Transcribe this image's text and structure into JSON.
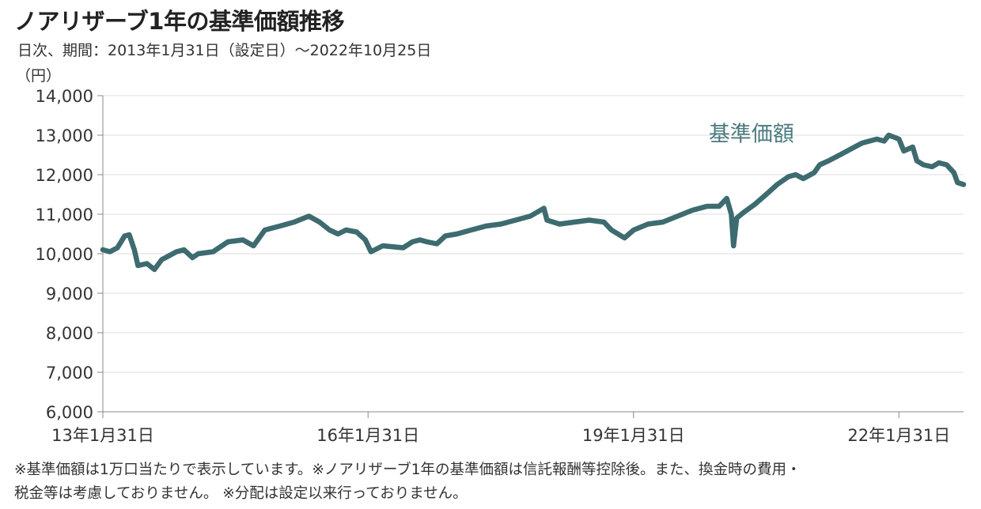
{
  "header": {
    "title": "ノアリザーブ1年の基準価額推移",
    "subtitle": "日次、期間：2013年1月31日（設定日）〜2022年10月25日"
  },
  "notes": [
    "※基準価額は1万口当たりで表示しています。※ノアリザーブ1年の基準価額は信託報酬等控除後。また、換金時の費用・",
    "税金等は考慮しておりません。 ※分配は設定以来行っておりません。"
  ],
  "colors": {
    "line": "#3d6b70",
    "axis": "#888888",
    "grid": "#dcdcdc",
    "text": "#333333",
    "series_label": "#4a7a7f"
  },
  "chart_data": {
    "type": "line",
    "title": "ノアリザーブ1年の基準価額推移",
    "ylabel": "（円）",
    "ylim": [
      6000,
      14000
    ],
    "yticks": [
      6000,
      7000,
      8000,
      9000,
      10000,
      11000,
      12000,
      13000,
      14000
    ],
    "ytick_labels": [
      "6,000",
      "7,000",
      "8,000",
      "9,000",
      "10,000",
      "11,000",
      "12,000",
      "13,000",
      "14,000"
    ],
    "xlim": [
      "2013-01-31",
      "2022-10-25"
    ],
    "xticks": [
      "2013-01-31",
      "2016-01-31",
      "2019-01-31",
      "2022-01-31"
    ],
    "xtick_labels": [
      "13年1月31日",
      "16年1月31日",
      "19年1月31日",
      "22年1月31日"
    ],
    "grid": "horizontal",
    "series": [
      {
        "name": "基準価額",
        "x": [
          "2013-01-31",
          "2013-03-01",
          "2013-04-01",
          "2013-05-01",
          "2013-05-20",
          "2013-06-10",
          "2013-06-25",
          "2013-08-01",
          "2013-09-01",
          "2013-10-01",
          "2013-11-01",
          "2013-12-01",
          "2014-01-01",
          "2014-02-05",
          "2014-03-01",
          "2014-05-01",
          "2014-07-01",
          "2014-09-01",
          "2014-10-15",
          "2014-12-01",
          "2015-02-01",
          "2015-04-01",
          "2015-06-01",
          "2015-07-15",
          "2015-08-25",
          "2015-09-29",
          "2015-11-01",
          "2015-12-15",
          "2016-01-20",
          "2016-02-12",
          "2016-04-01",
          "2016-06-24",
          "2016-08-01",
          "2016-09-01",
          "2016-10-01",
          "2016-11-10",
          "2016-12-15",
          "2017-02-01",
          "2017-04-01",
          "2017-06-01",
          "2017-08-01",
          "2017-10-01",
          "2017-12-01",
          "2018-01-26",
          "2018-02-08",
          "2018-04-01",
          "2018-06-01",
          "2018-08-01",
          "2018-10-01",
          "2018-11-01",
          "2018-12-25",
          "2019-02-01",
          "2019-04-01",
          "2019-06-01",
          "2019-08-01",
          "2019-10-01",
          "2019-12-01",
          "2020-01-20",
          "2020-02-20",
          "2020-03-10",
          "2020-03-19",
          "2020-04-01",
          "2020-05-01",
          "2020-06-15",
          "2020-08-01",
          "2020-09-15",
          "2020-11-01",
          "2020-12-01",
          "2021-01-01",
          "2021-02-15",
          "2021-03-10",
          "2021-04-15",
          "2021-06-01",
          "2021-08-01",
          "2021-09-01",
          "2021-10-01",
          "2021-11-01",
          "2021-12-01",
          "2021-12-20",
          "2022-01-31",
          "2022-02-20",
          "2022-03-29",
          "2022-04-15",
          "2022-05-12",
          "2022-06-17",
          "2022-07-15",
          "2022-08-16",
          "2022-09-15",
          "2022-09-30",
          "2022-10-25"
        ],
        "values": [
          10100,
          10050,
          10150,
          10450,
          10480,
          10100,
          9700,
          9750,
          9600,
          9850,
          9950,
          10050,
          10100,
          9900,
          10000,
          10050,
          10300,
          10350,
          10200,
          10600,
          10700,
          10800,
          10950,
          10800,
          10600,
          10500,
          10600,
          10550,
          10350,
          10050,
          10200,
          10150,
          10300,
          10350,
          10300,
          10250,
          10450,
          10500,
          10600,
          10700,
          10750,
          10850,
          10950,
          11150,
          10850,
          10750,
          10800,
          10850,
          10800,
          10600,
          10400,
          10600,
          10750,
          10800,
          10950,
          11100,
          11200,
          11200,
          11400,
          11000,
          10200,
          10900,
          11050,
          11250,
          11500,
          11750,
          11950,
          12000,
          11900,
          12050,
          12250,
          12350,
          12500,
          12700,
          12800,
          12850,
          12900,
          12850,
          13000,
          12900,
          12600,
          12700,
          12350,
          12250,
          12200,
          12300,
          12250,
          12050,
          11800,
          11750
        ]
      }
    ],
    "annotations": [
      {
        "text": "基準価額",
        "at": "2020-06-01",
        "value": 12850
      }
    ]
  }
}
